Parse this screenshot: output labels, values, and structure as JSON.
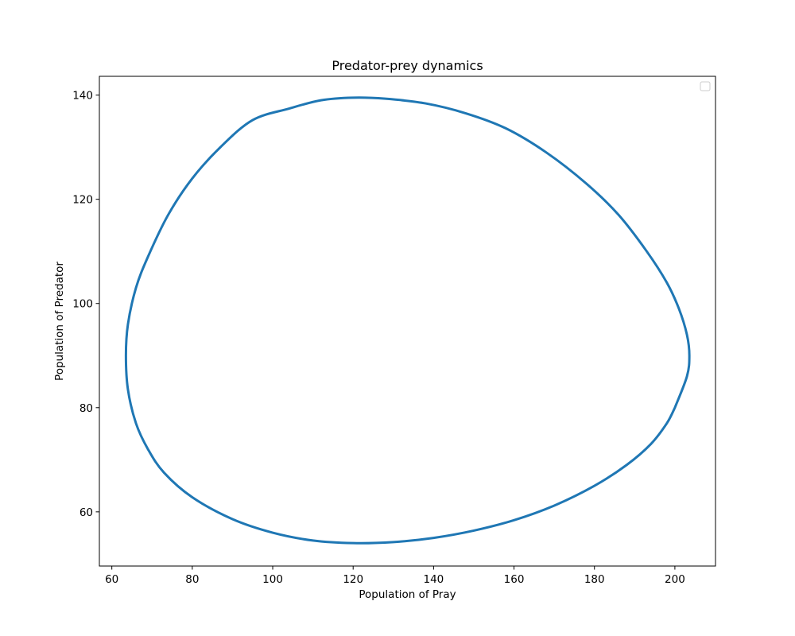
{
  "chart_data": {
    "type": "line",
    "title": "Predator-prey dynamics",
    "xlabel": "Population of Pray",
    "ylabel": "Population of Predator",
    "xlim": [
      56.9,
      210.1
    ],
    "ylim": [
      49.6,
      143.6
    ],
    "xticks": [
      60,
      80,
      100,
      120,
      140,
      160,
      180,
      200
    ],
    "yticks": [
      60,
      80,
      100,
      120,
      140
    ],
    "grid": false,
    "legend": {
      "placement": "top-right",
      "entries": []
    },
    "series": [
      {
        "color": "#1f77b4",
        "points": [
          [
            200,
            80
          ],
          [
            203,
            86
          ],
          [
            203.6,
            90
          ],
          [
            203,
            94
          ],
          [
            201,
            99
          ],
          [
            198,
            104
          ],
          [
            193,
            110
          ],
          [
            186,
            117
          ],
          [
            178,
            123
          ],
          [
            168,
            129
          ],
          [
            158,
            133.6
          ],
          [
            148,
            136.5
          ],
          [
            138,
            138.4
          ],
          [
            128,
            139.3
          ],
          [
            120,
            139.5
          ],
          [
            112,
            139
          ],
          [
            104,
            137.4
          ],
          [
            95,
            135.2
          ],
          [
            87,
            130
          ],
          [
            80,
            124
          ],
          [
            74,
            117
          ],
          [
            69,
            109
          ],
          [
            66,
            103
          ],
          [
            64,
            96
          ],
          [
            63.5,
            90
          ],
          [
            64,
            83.5
          ],
          [
            66,
            77
          ],
          [
            69,
            72
          ],
          [
            73,
            67.5
          ],
          [
            80,
            62.8
          ],
          [
            90,
            58.6
          ],
          [
            100,
            56
          ],
          [
            110,
            54.5
          ],
          [
            120,
            54
          ],
          [
            130,
            54.2
          ],
          [
            140,
            55
          ],
          [
            150,
            56.4
          ],
          [
            160,
            58.4
          ],
          [
            170,
            61.2
          ],
          [
            180,
            65
          ],
          [
            188,
            69
          ],
          [
            194,
            73
          ],
          [
            198,
            77
          ],
          [
            200,
            80
          ]
        ]
      }
    ]
  }
}
